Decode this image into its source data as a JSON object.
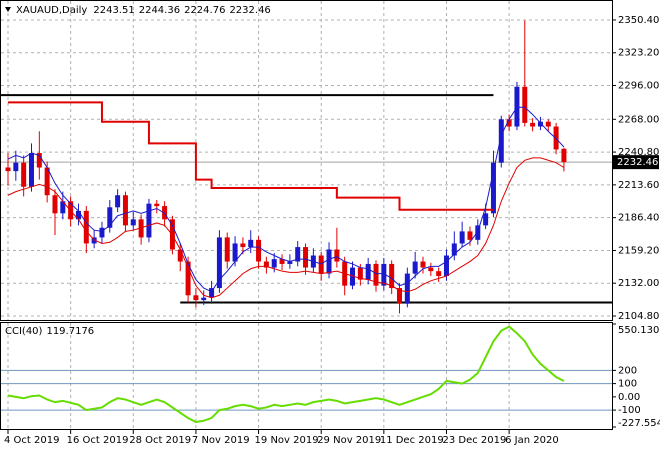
{
  "chart_data": [
    {
      "type": "candlestick",
      "title": "XAUAUD,Daily",
      "categories": [
        "4 Oct 2019",
        null,
        null,
        null,
        null,
        null,
        null,
        null,
        "16 Oct 2019",
        null,
        null,
        null,
        null,
        null,
        null,
        null,
        "28 Oct 2019",
        null,
        null,
        null,
        null,
        null,
        null,
        null,
        "7 Nov 2019",
        null,
        null,
        null,
        null,
        null,
        null,
        null,
        "19 Nov 2019",
        null,
        null,
        null,
        null,
        null,
        null,
        null,
        "29 Nov 2019",
        null,
        null,
        null,
        null,
        null,
        null,
        null,
        "11 Dec 2019",
        null,
        null,
        null,
        null,
        null,
        null,
        null,
        "23 Dec 2019",
        null,
        null,
        null,
        null,
        null,
        null,
        null,
        "6 Jan 2020",
        null,
        null,
        null,
        null,
        null,
        null,
        null
      ],
      "open": [
        2228,
        2225,
        2232,
        2212,
        2240,
        2228,
        2205,
        2190,
        2200,
        2185,
        2192,
        2165,
        2170,
        2178,
        2195,
        2205,
        2180,
        2185,
        2170,
        2198,
        2196,
        2185,
        2160,
        2150,
        2122,
        2118,
        2120,
        2128,
        2170,
        2150,
        2165,
        2162,
        2168,
        2150,
        2145,
        2152,
        2148,
        2150,
        2162,
        2145,
        2155,
        2140,
        2160,
        2150,
        2130,
        2145,
        2135,
        2148,
        2130,
        2148,
        2128,
        2115,
        2140,
        2150,
        2145,
        2142,
        2138,
        2155,
        2165,
        2175,
        2168,
        2180,
        2190,
        2232,
        2268,
        2262,
        2295,
        2265,
        2262,
        2266,
        2262,
        2243.51
      ],
      "high": [
        2240,
        2242,
        2238,
        2248,
        2258,
        2233,
        2210,
        2208,
        2204,
        2198,
        2196,
        2176,
        2183,
        2201,
        2210,
        2208,
        2191,
        2189,
        2202,
        2201,
        2200,
        2188,
        2165,
        2154,
        2128,
        2126,
        2134,
        2176,
        2174,
        2171,
        2170,
        2176,
        2171,
        2154,
        2157,
        2156,
        2156,
        2167,
        2165,
        2161,
        2158,
        2166,
        2178,
        2154,
        2150,
        2148,
        2153,
        2151,
        2153,
        2151,
        2132,
        2145,
        2158,
        2154,
        2149,
        2145,
        2160,
        2175,
        2183,
        2179,
        2185,
        2198,
        2242,
        2271,
        2272,
        2299,
        2350,
        2269,
        2270,
        2268,
        2265,
        2244.36
      ],
      "low": [
        2213,
        2217,
        2204,
        2208,
        2218,
        2199,
        2172,
        2185,
        2179,
        2180,
        2157,
        2161,
        2165,
        2174,
        2191,
        2175,
        2176,
        2164,
        2166,
        2190,
        2179,
        2156,
        2142,
        2116,
        2112,
        2114,
        2115,
        2124,
        2144,
        2146,
        2156,
        2157,
        2144,
        2140,
        2141,
        2143,
        2144,
        2146,
        2139,
        2141,
        2134,
        2136,
        2145,
        2122,
        2127,
        2130,
        2131,
        2125,
        2126,
        2123,
        2107,
        2112,
        2136,
        2140,
        2138,
        2133,
        2134,
        2151,
        2162,
        2163,
        2164,
        2177,
        2187,
        2228,
        2258,
        2259,
        2262,
        2258,
        2259,
        2258,
        2239,
        2224.76
      ],
      "close": [
        2225,
        2232,
        2212,
        2240,
        2228,
        2205,
        2190,
        2200,
        2185,
        2192,
        2165,
        2170,
        2178,
        2195,
        2205,
        2180,
        2185,
        2170,
        2198,
        2196,
        2185,
        2160,
        2150,
        2122,
        2118,
        2120,
        2128,
        2170,
        2150,
        2165,
        2162,
        2168,
        2150,
        2145,
        2152,
        2148,
        2150,
        2162,
        2145,
        2155,
        2140,
        2160,
        2150,
        2130,
        2145,
        2135,
        2148,
        2130,
        2148,
        2128,
        2115,
        2140,
        2150,
        2145,
        2142,
        2138,
        2155,
        2165,
        2175,
        2168,
        2180,
        2190,
        2232,
        2268,
        2262,
        2295,
        2265,
        2262,
        2266,
        2262,
        2243,
        2232.46
      ],
      "up_color": "#1a1acc",
      "down_color": "#e00000",
      "overlays": [
        {
          "color": "#e00000",
          "step": true,
          "width": 2,
          "values": [
            2282,
            2282,
            2282,
            2282,
            2282,
            2282,
            2282,
            2282,
            2282,
            2282,
            2282,
            2282,
            2266,
            2266,
            2266,
            2266,
            2266,
            2266,
            2248,
            2248,
            2248,
            2248,
            2248,
            2248,
            2218,
            2218,
            2211,
            2211,
            2211,
            2211,
            2211,
            2211,
            2211,
            2211,
            2211,
            2211,
            2211,
            2211,
            2211,
            2211,
            2211,
            2211,
            2203,
            2203,
            2203,
            2203,
            2203,
            2203,
            2203,
            2203,
            2193,
            2193,
            2193,
            2193,
            2193,
            2193,
            2193,
            2193,
            2193,
            2193,
            2193,
            2193,
            2193,
            null,
            null,
            null,
            null,
            null,
            null,
            null,
            null,
            null
          ]
        },
        {
          "color": "#1a1acc",
          "width": 1,
          "values": [
            2235,
            2238,
            2236,
            2240,
            2238,
            2228,
            2215,
            2205,
            2198,
            2192,
            2182,
            2176,
            2175,
            2180,
            2188,
            2190,
            2192,
            2190,
            2192,
            2194,
            2190,
            2180,
            2165,
            2148,
            2135,
            2128,
            2125,
            2135,
            2142,
            2150,
            2158,
            2162,
            2162,
            2158,
            2155,
            2152,
            2150,
            2152,
            2152,
            2150,
            2148,
            2152,
            2154,
            2150,
            2148,
            2145,
            2144,
            2140,
            2140,
            2136,
            2130,
            2132,
            2138,
            2144,
            2146,
            2146,
            2150,
            2156,
            2162,
            2166,
            2175,
            2195,
            2225,
            2255,
            2268,
            2278,
            2278,
            2272,
            2265,
            2258,
            2252,
            2245
          ]
        },
        {
          "color": "#e00000",
          "width": 1,
          "values": [
            2205,
            2208,
            2210,
            2212,
            2214,
            2212,
            2208,
            2200,
            2192,
            2185,
            2175,
            2168,
            2165,
            2166,
            2170,
            2175,
            2176,
            2178,
            2180,
            2182,
            2180,
            2172,
            2160,
            2145,
            2130,
            2122,
            2120,
            2122,
            2128,
            2134,
            2140,
            2144,
            2146,
            2146,
            2144,
            2142,
            2141,
            2141,
            2142,
            2141,
            2140,
            2141,
            2142,
            2140,
            2138,
            2136,
            2135,
            2133,
            2132,
            2130,
            2126,
            2125,
            2127,
            2131,
            2134,
            2136,
            2138,
            2142,
            2146,
            2150,
            2155,
            2165,
            2180,
            2200,
            2215,
            2228,
            2234,
            2236,
            2236,
            2234,
            2232,
            2228
          ]
        }
      ],
      "hlines": [
        {
          "value": 2288,
          "from": 0,
          "to": 62
        },
        {
          "value": 2116,
          "from": 22,
          "to": 71
        }
      ],
      "ylim": [
        2101.5,
        2365.3
      ],
      "yticks": [
        {
          "value": 2350.4,
          "label": "2350.40"
        },
        {
          "value": 2323.2,
          "label": "2323.20"
        },
        {
          "value": 2296,
          "label": "2296.00"
        },
        {
          "value": 2268,
          "label": "2268.00"
        },
        {
          "value": 2240.8,
          "label": "2240.80"
        },
        {
          "value": 2213.6,
          "label": "2213.60"
        },
        {
          "value": 2186.4,
          "label": "2186.40"
        },
        {
          "value": 2159.2,
          "label": "2159.20"
        },
        {
          "value": 2132,
          "label": "2132.00"
        },
        {
          "value": 2104.8,
          "label": "2104.80"
        }
      ],
      "grid": true
    },
    {
      "type": "line",
      "title": "CCI(40)",
      "color": "#66dd00",
      "values": [
        10,
        0,
        -10,
        5,
        10,
        -20,
        -40,
        -30,
        -45,
        -60,
        -100,
        -90,
        -80,
        -40,
        -10,
        -20,
        -40,
        -60,
        -40,
        -20,
        -40,
        -80,
        -120,
        -160,
        -190,
        -180,
        -160,
        -100,
        -90,
        -70,
        -60,
        -70,
        -90,
        -80,
        -60,
        -70,
        -60,
        -50,
        -60,
        -40,
        -30,
        -20,
        -30,
        -50,
        -40,
        -30,
        -20,
        -10,
        -20,
        -40,
        -60,
        -40,
        -20,
        0,
        20,
        60,
        120,
        110,
        100,
        130,
        180,
        300,
        420,
        500,
        530,
        480,
        420,
        320,
        250,
        200,
        150,
        119.7176
      ],
      "ylim": [
        -227.5547,
        550.1303
      ],
      "yticks": [
        550.1303,
        200,
        100,
        {
          "value": 0,
          "label": "0.00"
        },
        -100,
        -227.5547
      ],
      "levels": [
        200,
        100,
        -100
      ],
      "level_color": "#6f96c0",
      "grid": true
    }
  ]
}
